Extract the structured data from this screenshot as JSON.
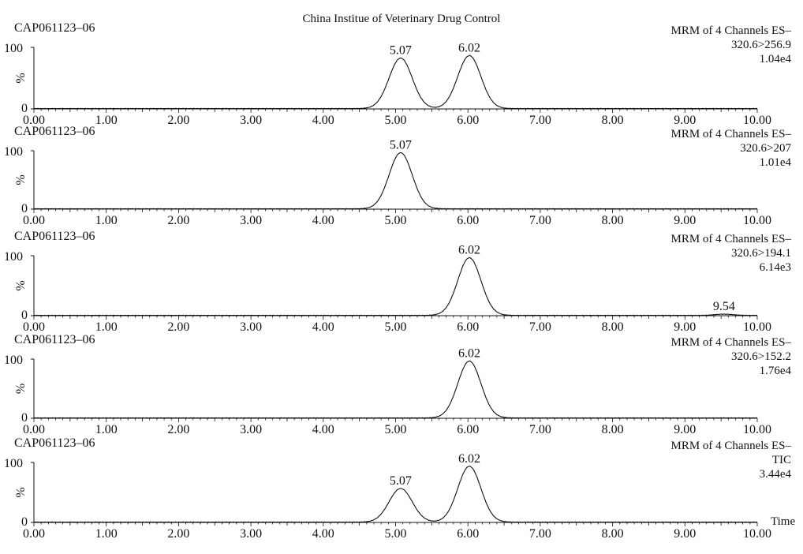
{
  "header": {
    "title": "China Institue of Veterinary Drug Control"
  },
  "chart_data": [
    {
      "type": "line",
      "sample_id": "CAP061123–06",
      "channel_title": "MRM of 4 Channels ES–",
      "transition": "320.6>256.9",
      "intensity": "1.04e4",
      "y_ticks": [
        "100",
        "%",
        "0"
      ],
      "x_ticks": [
        "0.00",
        "1.00",
        "2.00",
        "3.00",
        "4.00",
        "5.00",
        "6.00",
        "7.00",
        "8.00",
        "9.00",
        "10.00"
      ],
      "xlim": [
        0,
        10
      ],
      "ylim": [
        0,
        100
      ],
      "peaks": [
        {
          "rt": 5.07,
          "label": "5.07",
          "height": 82,
          "width": 0.16
        },
        {
          "rt": 6.02,
          "label": "6.02",
          "height": 86,
          "width": 0.16
        }
      ]
    },
    {
      "type": "line",
      "sample_id": "CAP061123–06",
      "channel_title": "MRM of 4 Channels ES–",
      "transition": "320.6>207",
      "intensity": "1.01e4",
      "y_ticks": [
        "100",
        "%",
        "0"
      ],
      "x_ticks": [
        "0.00",
        "1.00",
        "2.00",
        "3.00",
        "4.00",
        "5.00",
        "6.00",
        "7.00",
        "8.00",
        "9.00",
        "10.00"
      ],
      "xlim": [
        0,
        10
      ],
      "ylim": [
        0,
        100
      ],
      "peaks": [
        {
          "rt": 5.07,
          "label": "5.07",
          "height": 96,
          "width": 0.16
        }
      ]
    },
    {
      "type": "line",
      "sample_id": "CAP061123–06",
      "channel_title": "MRM of 4 Channels ES–",
      "transition": "320.6>194.1",
      "intensity": "6.14e3",
      "y_ticks": [
        "100",
        "%",
        "0"
      ],
      "x_ticks": [
        "0.00",
        "1.00",
        "2.00",
        "3.00",
        "4.00",
        "5.00",
        "6.00",
        "7.00",
        "8.00",
        "9.00",
        "10.00"
      ],
      "xlim": [
        0,
        10
      ],
      "ylim": [
        0,
        100
      ],
      "peaks": [
        {
          "rt": 6.02,
          "label": "6.02",
          "height": 96,
          "width": 0.16
        },
        {
          "rt": 9.54,
          "label": "9.54",
          "height": 2,
          "width": 0.12
        }
      ]
    },
    {
      "type": "line",
      "sample_id": "CAP061123–06",
      "channel_title": "MRM of 4 Channels ES–",
      "transition": "320.6>152.2",
      "intensity": "1.76e4",
      "y_ticks": [
        "100",
        "%",
        "0"
      ],
      "x_ticks": [
        "0.00",
        "1.00",
        "2.00",
        "3.00",
        "4.00",
        "5.00",
        "6.00",
        "7.00",
        "8.00",
        "9.00",
        "10.00"
      ],
      "xlim": [
        0,
        10
      ],
      "ylim": [
        0,
        100
      ],
      "peaks": [
        {
          "rt": 6.02,
          "label": "6.02",
          "height": 96,
          "width": 0.16
        }
      ]
    },
    {
      "type": "line",
      "sample_id": "CAP061123–06",
      "channel_title": "MRM of 4 Channels ES–",
      "transition": "TIC",
      "intensity": "3.44e4",
      "y_ticks": [
        "100",
        "%",
        "0"
      ],
      "x_ticks": [
        "0.00",
        "1.00",
        "2.00",
        "3.00",
        "4.00",
        "5.00",
        "6.00",
        "7.00",
        "8.00",
        "9.00",
        "10.00"
      ],
      "x_label": "Time",
      "xlim": [
        0,
        10
      ],
      "ylim": [
        0,
        100
      ],
      "peaks": [
        {
          "rt": 5.07,
          "label": "5.07",
          "height": 56,
          "width": 0.16
        },
        {
          "rt": 6.02,
          "label": "6.02",
          "height": 93,
          "width": 0.16
        }
      ]
    }
  ]
}
